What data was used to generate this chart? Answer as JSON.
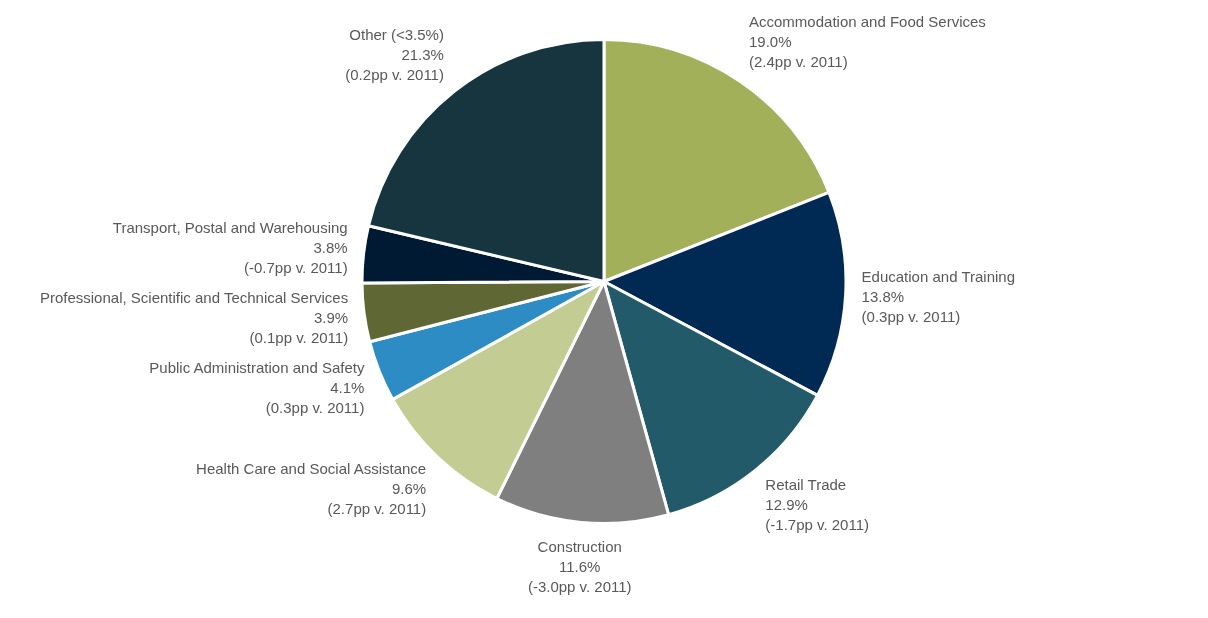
{
  "chart_data": {
    "type": "pie",
    "categories": [
      "Accommodation and Food Services",
      "Education and Training",
      "Retail Trade",
      "Construction",
      "Health Care and Social Assistance",
      "Public Administration and Safety",
      "Professional, Scientific and Technical Services",
      "Transport, Postal and Warehousing",
      "Other (<3.5%)"
    ],
    "values": [
      19.0,
      13.8,
      12.9,
      11.6,
      9.6,
      4.1,
      3.9,
      3.8,
      21.3
    ],
    "colors": [
      "#a2b05a",
      "#002a54",
      "#235a6a",
      "#7f7f7f",
      "#c3cc92",
      "#2e8cc4",
      "#5f6834",
      "#011a33",
      "#16353f"
    ],
    "value_labels": [
      "19.0%\n(2.4pp v. 2011)",
      "13.8%\n(0.3pp v. 2011)",
      "12.9%\n(-1.7pp v. 2011)",
      "11.6%\n(-3.0pp v. 2011)",
      "9.6%\n(2.7pp v. 2011)",
      "4.1%\n(0.3pp v. 2011)",
      "3.9%\n(0.1pp v. 2011)",
      "3.8%\n(-0.7pp v. 2011)",
      "21.3%\n(0.2pp v. 2011)"
    ],
    "legend": false
  }
}
